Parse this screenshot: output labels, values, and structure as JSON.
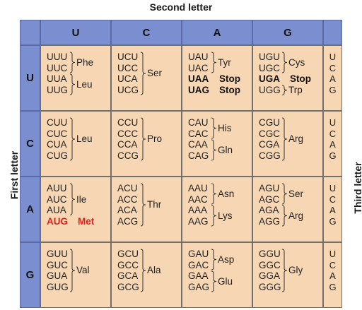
{
  "axis_titles": {
    "second": "Second letter",
    "first": "First letter",
    "third": "Third letter"
  },
  "second_letters": [
    "U",
    "C",
    "A",
    "G"
  ],
  "first_letters": [
    "U",
    "C",
    "A",
    "G"
  ],
  "third_letters": [
    "U",
    "C",
    "A",
    "G"
  ],
  "blocks": [
    [
      {
        "codons": [
          "UUU",
          "UUC",
          "UUA",
          "UUG"
        ],
        "groups": [
          {
            "start": 0,
            "end": 1,
            "label": "Phe"
          },
          {
            "start": 2,
            "end": 3,
            "label": "Leu"
          }
        ]
      },
      {
        "codons": [
          "UCU",
          "UCC",
          "UCA",
          "UCG"
        ],
        "groups": [
          {
            "start": 0,
            "end": 3,
            "label": "Ser"
          }
        ]
      },
      {
        "codons": [
          "UAU",
          "UAC",
          "UAA",
          "UAG"
        ],
        "bold": [
          2,
          3
        ],
        "groups": [
          {
            "start": 0,
            "end": 1,
            "label": "Tyr"
          },
          {
            "start": 2,
            "end": 2,
            "label": "Stop",
            "style": "bold"
          },
          {
            "start": 3,
            "end": 3,
            "label": "Stop",
            "style": "bold"
          }
        ]
      },
      {
        "codons": [
          "UGU",
          "UGC",
          "UGA",
          "UGG"
        ],
        "bold": [
          2
        ],
        "groups": [
          {
            "start": 0,
            "end": 1,
            "label": "Cys"
          },
          {
            "start": 2,
            "end": 2,
            "label": "Stop",
            "style": "bold"
          },
          {
            "start": 3,
            "end": 3,
            "label": "Trp"
          }
        ]
      }
    ],
    [
      {
        "codons": [
          "CUU",
          "CUC",
          "CUA",
          "CUG"
        ],
        "groups": [
          {
            "start": 0,
            "end": 3,
            "label": "Leu"
          }
        ]
      },
      {
        "codons": [
          "CCU",
          "CCC",
          "CCA",
          "CCG"
        ],
        "groups": [
          {
            "start": 0,
            "end": 3,
            "label": "Pro"
          }
        ]
      },
      {
        "codons": [
          "CAU",
          "CAC",
          "CAA",
          "CAG"
        ],
        "groups": [
          {
            "start": 0,
            "end": 1,
            "label": "His"
          },
          {
            "start": 2,
            "end": 3,
            "label": "Gln"
          }
        ]
      },
      {
        "codons": [
          "CGU",
          "CGC",
          "CGA",
          "CGG"
        ],
        "groups": [
          {
            "start": 0,
            "end": 3,
            "label": "Arg"
          }
        ]
      }
    ],
    [
      {
        "codons": [
          "AUU",
          "AUC",
          "AUA",
          "AUG"
        ],
        "red": [
          3
        ],
        "groups": [
          {
            "start": 0,
            "end": 2,
            "label": "Ile"
          },
          {
            "start": 3,
            "end": 3,
            "label": "Met",
            "style": "red"
          }
        ]
      },
      {
        "codons": [
          "ACU",
          "ACC",
          "ACA",
          "ACG"
        ],
        "groups": [
          {
            "start": 0,
            "end": 3,
            "label": "Thr"
          }
        ]
      },
      {
        "codons": [
          "AAU",
          "AAC",
          "AAA",
          "AAG"
        ],
        "groups": [
          {
            "start": 0,
            "end": 1,
            "label": "Asn"
          },
          {
            "start": 2,
            "end": 3,
            "label": "Lys"
          }
        ]
      },
      {
        "codons": [
          "AGU",
          "AGC",
          "AGA",
          "AGG"
        ],
        "groups": [
          {
            "start": 0,
            "end": 1,
            "label": "Ser"
          },
          {
            "start": 2,
            "end": 3,
            "label": "Arg"
          }
        ]
      }
    ],
    [
      {
        "codons": [
          "GUU",
          "GUC",
          "GUA",
          "GUG"
        ],
        "groups": [
          {
            "start": 0,
            "end": 3,
            "label": "Val"
          }
        ]
      },
      {
        "codons": [
          "GCU",
          "GCC",
          "GCA",
          "GCG"
        ],
        "groups": [
          {
            "start": 0,
            "end": 3,
            "label": "Ala"
          }
        ]
      },
      {
        "codons": [
          "GAU",
          "GAC",
          "GAA",
          "GAG"
        ],
        "groups": [
          {
            "start": 0,
            "end": 1,
            "label": "Asp"
          },
          {
            "start": 2,
            "end": 3,
            "label": "Glu"
          }
        ]
      },
      {
        "codons": [
          "GGU",
          "GGC",
          "GGA",
          "GGG"
        ],
        "groups": [
          {
            "start": 0,
            "end": 3,
            "label": "Gly"
          }
        ]
      }
    ]
  ]
}
